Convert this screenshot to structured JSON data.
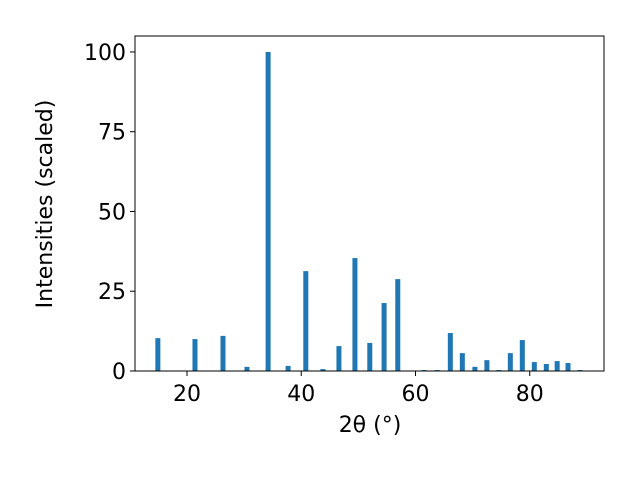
{
  "chart_data": {
    "type": "bar",
    "xlabel": "2θ (°)",
    "ylabel": "Intensities (scaled)",
    "color": "#1f77b4",
    "x": [
      14.9,
      21.4,
      26.3,
      30.5,
      34.2,
      37.7,
      40.8,
      43.8,
      46.6,
      49.4,
      52.0,
      54.5,
      56.9,
      61.5,
      63.8,
      66.1,
      68.2,
      70.4,
      72.5,
      74.6,
      76.6,
      78.7,
      80.8,
      82.9,
      84.8,
      86.7,
      88.8
    ],
    "values": [
      10.3,
      10.0,
      11.0,
      1.3,
      100,
      1.6,
      31.3,
      0.6,
      7.8,
      35.4,
      8.8,
      21.3,
      28.8,
      0.3,
      0.3,
      11.9,
      5.6,
      1.3,
      3.4,
      0.3,
      5.6,
      9.7,
      2.8,
      2.2,
      3.1,
      2.5,
      0.3
    ],
    "xlim": [
      10.9,
      93.0
    ],
    "xticks": [
      20,
      40,
      60,
      80
    ],
    "ylim": [
      0,
      105
    ],
    "yticks": [
      0,
      25,
      50,
      75,
      100
    ]
  }
}
